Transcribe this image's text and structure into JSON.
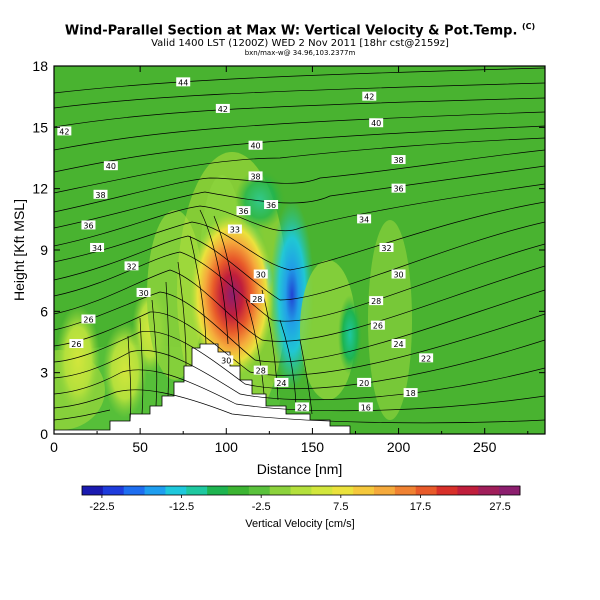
{
  "header": {
    "title": "Wind-Parallel Section at Max W: Vertical Velocity & Pot.Temp.",
    "copyright": "(C)",
    "subtitle": "Valid 1400 LST (1200Z) WED 2 Nov 2011 [18hr cst@2159z]",
    "subsubtitle": "bxn/max-w@ 34.96,103.2377m"
  },
  "chart_data": {
    "type": "heatmap",
    "xlabel": "Distance [nm]",
    "ylabel": "Height [Kft MSL]",
    "xlim": [
      0,
      285
    ],
    "ylim": [
      0,
      18
    ],
    "xticks": [
      "0",
      "50",
      "100",
      "150",
      "200",
      "250"
    ],
    "yticks": [
      "0",
      "3",
      "6",
      "9",
      "12",
      "15",
      "18"
    ],
    "background_color": "#49b330",
    "colorbar": {
      "label": "Vertical Velocity [cm/s]",
      "ticks": [
        "-22.5",
        "-12.5",
        "-2.5",
        "7.5",
        "17.5",
        "27.5"
      ],
      "levels": [
        -25,
        30
      ],
      "colors": [
        "#1a1ab0",
        "#1e3cdc",
        "#1e6ef0",
        "#1e9ef0",
        "#1ec8dc",
        "#1ec8a0",
        "#1eb450",
        "#3cb432",
        "#5ac23c",
        "#8cd23c",
        "#b4e03c",
        "#d2e63c",
        "#ebe23c",
        "#f5c83c",
        "#f5aa3c",
        "#f08232",
        "#e85a2a",
        "#d8302a",
        "#c01e3c",
        "#a01e5a",
        "#8c1e6e"
      ]
    },
    "isotherm_labels": [
      {
        "x": 75,
        "y": 17.2,
        "text": "44"
      },
      {
        "x": 98,
        "y": 15.9,
        "text": "42"
      },
      {
        "x": 183,
        "y": 16.5,
        "text": "42"
      },
      {
        "x": 6,
        "y": 14.8,
        "text": "42"
      },
      {
        "x": 117,
        "y": 14.1,
        "text": "40"
      },
      {
        "x": 187,
        "y": 15.2,
        "text": "40"
      },
      {
        "x": 33,
        "y": 13.1,
        "text": "40"
      },
      {
        "x": 117,
        "y": 12.6,
        "text": "38"
      },
      {
        "x": 200,
        "y": 13.4,
        "text": "38"
      },
      {
        "x": 27,
        "y": 11.7,
        "text": "38"
      },
      {
        "x": 200,
        "y": 12.0,
        "text": "36"
      },
      {
        "x": 110,
        "y": 10.9,
        "text": "36"
      },
      {
        "x": 126,
        "y": 11.2,
        "text": "36"
      },
      {
        "x": 20,
        "y": 10.2,
        "text": "36"
      },
      {
        "x": 180,
        "y": 10.5,
        "text": "34"
      },
      {
        "x": 105,
        "y": 10.0,
        "text": "33"
      },
      {
        "x": 25,
        "y": 9.1,
        "text": "34"
      },
      {
        "x": 193,
        "y": 9.1,
        "text": "32"
      },
      {
        "x": 45,
        "y": 8.2,
        "text": "32"
      },
      {
        "x": 120,
        "y": 7.8,
        "text": "30"
      },
      {
        "x": 200,
        "y": 7.8,
        "text": "30"
      },
      {
        "x": 52,
        "y": 6.9,
        "text": "30"
      },
      {
        "x": 118,
        "y": 6.6,
        "text": "28"
      },
      {
        "x": 187,
        "y": 6.5,
        "text": "28"
      },
      {
        "x": 20,
        "y": 5.6,
        "text": "26"
      },
      {
        "x": 188,
        "y": 5.3,
        "text": "26"
      },
      {
        "x": 200,
        "y": 4.4,
        "text": "24"
      },
      {
        "x": 13,
        "y": 4.4,
        "text": "26"
      },
      {
        "x": 216,
        "y": 3.7,
        "text": "22"
      },
      {
        "x": 100,
        "y": 3.6,
        "text": "30"
      },
      {
        "x": 120,
        "y": 3.1,
        "text": "28"
      },
      {
        "x": 132,
        "y": 2.5,
        "text": "24"
      },
      {
        "x": 180,
        "y": 2.5,
        "text": "20"
      },
      {
        "x": 207,
        "y": 2.0,
        "text": "18"
      },
      {
        "x": 144,
        "y": 1.3,
        "text": "22"
      },
      {
        "x": 181,
        "y": 1.3,
        "text": "16"
      }
    ],
    "grid": false,
    "legend": "bottom"
  }
}
